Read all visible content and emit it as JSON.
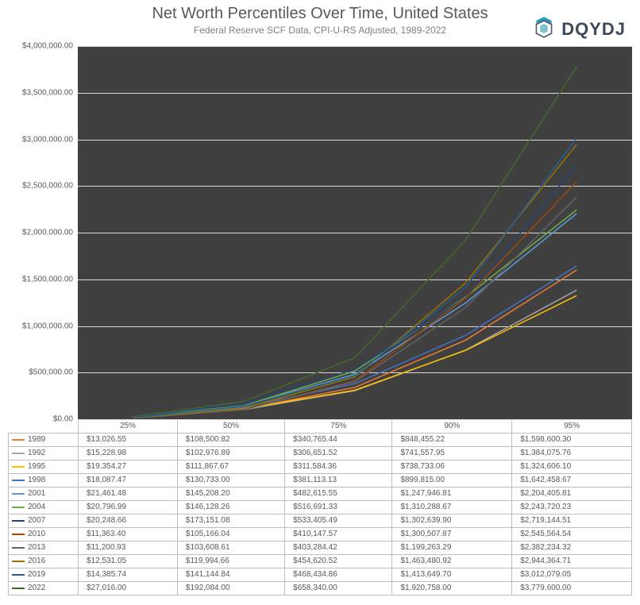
{
  "title": "Net Worth Percentiles Over Time, United States",
  "subtitle": "Federal Reserve SCF Data, CPI-U-RS Adjusted, 1989-2022",
  "logo_text": "DQYDJ",
  "logo_color_primary": "#2a9bb5",
  "logo_color_secondary": "#4a5a6a",
  "chart": {
    "type": "line",
    "background_color": "#404040",
    "grid_color": "#d9d9d9",
    "ylim": [
      0,
      4000000
    ],
    "ytick_step": 500000,
    "ytick_labels": [
      "$0.00",
      "$500,000.00",
      "$1,000,000.00",
      "$1,500,000.00",
      "$2,000,000.00",
      "$2,500,000.00",
      "$3,000,000.00",
      "$3,500,000.00",
      "$4,000,000.00"
    ],
    "x_categories": [
      "25%",
      "50%",
      "75%",
      "90%",
      "95%"
    ],
    "x_positions_pct": [
      10,
      30,
      50,
      70,
      90
    ],
    "label_fontsize": 10,
    "line_width": 1.5,
    "series": [
      {
        "year": "1989",
        "color": "#ed7d31",
        "values": [
          13026.55,
          108500.82,
          340765.44,
          848455.22,
          1598600.3
        ],
        "display": [
          "$13,026.55",
          "$108,500.82",
          "$340,765.44",
          "$848,455.22",
          "$1,598,600.30"
        ]
      },
      {
        "year": "1992",
        "color": "#a5a5a5",
        "values": [
          15228.98,
          102976.89,
          306651.52,
          741557.95,
          1384075.76
        ],
        "display": [
          "$15,228.98",
          "$102,976.89",
          "$306,651.52",
          "$741,557.95",
          "$1,384,075.76"
        ]
      },
      {
        "year": "1995",
        "color": "#ffc000",
        "values": [
          19354.27,
          111867.67,
          311584.36,
          738733.06,
          1324606.1
        ],
        "display": [
          "$19,354.27",
          "$111,867.67",
          "$311,584.36",
          "$738,733.06",
          "$1,324,606.10"
        ]
      },
      {
        "year": "1998",
        "color": "#4472c4",
        "values": [
          18087.47,
          130733.0,
          381113.13,
          899815.0,
          1642458.67
        ],
        "display": [
          "$18,087.47",
          "$130,733.00",
          "$381,113.13",
          "$899,815.00",
          "$1,642,458.67"
        ]
      },
      {
        "year": "2001",
        "color": "#5b9bd5",
        "values": [
          21461.48,
          145208.2,
          482615.55,
          1247946.81,
          2204405.81
        ],
        "display": [
          "$21,461.48",
          "$145,208.20",
          "$482,615.55",
          "$1,247,946.81",
          "$2,204,405.81"
        ]
      },
      {
        "year": "2004",
        "color": "#70ad47",
        "values": [
          20796.99,
          146128.26,
          516691.33,
          1310288.67,
          2243720.23
        ],
        "display": [
          "$20,796.99",
          "$146,128.26",
          "$516,691.33",
          "$1,310,288.67",
          "$2,243,720.23"
        ]
      },
      {
        "year": "2007",
        "color": "#264478",
        "values": [
          20248.66,
          173151.08,
          533405.49,
          1302639.9,
          2719144.51
        ],
        "display": [
          "$20,248.66",
          "$173,151.08",
          "$533,405.49",
          "$1,302,639.90",
          "$2,719,144.51"
        ]
      },
      {
        "year": "2010",
        "color": "#9e480e",
        "values": [
          11363.4,
          105166.04,
          410147.57,
          1300507.87,
          2545564.54
        ],
        "display": [
          "$11,363.40",
          "$105,166.04",
          "$410,147.57",
          "$1,300,507.87",
          "$2,545,564.54"
        ]
      },
      {
        "year": "2013",
        "color": "#636363",
        "values": [
          11200.93,
          103608.61,
          403284.42,
          1199263.29,
          2382234.32
        ],
        "display": [
          "$11,200.93",
          "$103,608.61",
          "$403,284.42",
          "$1,199,263.29",
          "$2,382,234.32"
        ]
      },
      {
        "year": "2016",
        "color": "#997300",
        "values": [
          12531.05,
          119994.66,
          454620.52,
          1463480.92,
          2944364.71
        ],
        "display": [
          "$12,531.05",
          "$119,994.66",
          "$454,620.52",
          "$1,463,480.92",
          "$2,944,364.71"
        ]
      },
      {
        "year": "2019",
        "color": "#255e91",
        "values": [
          14385.74,
          141144.84,
          468434.86,
          1413649.7,
          3012079.05
        ],
        "display": [
          "$14,385.74",
          "$141,144.84",
          "$468,434.86",
          "$1,413,649.70",
          "$3,012,079.05"
        ]
      },
      {
        "year": "2022",
        "color": "#43682b",
        "values": [
          27016.0,
          192084.0,
          658340.0,
          1920758.0,
          3779600.0
        ],
        "display": [
          "$27,016.00",
          "$192,084.00",
          "$658,340.00",
          "$1,920,758.00",
          "$3,779,600.00"
        ]
      }
    ]
  }
}
